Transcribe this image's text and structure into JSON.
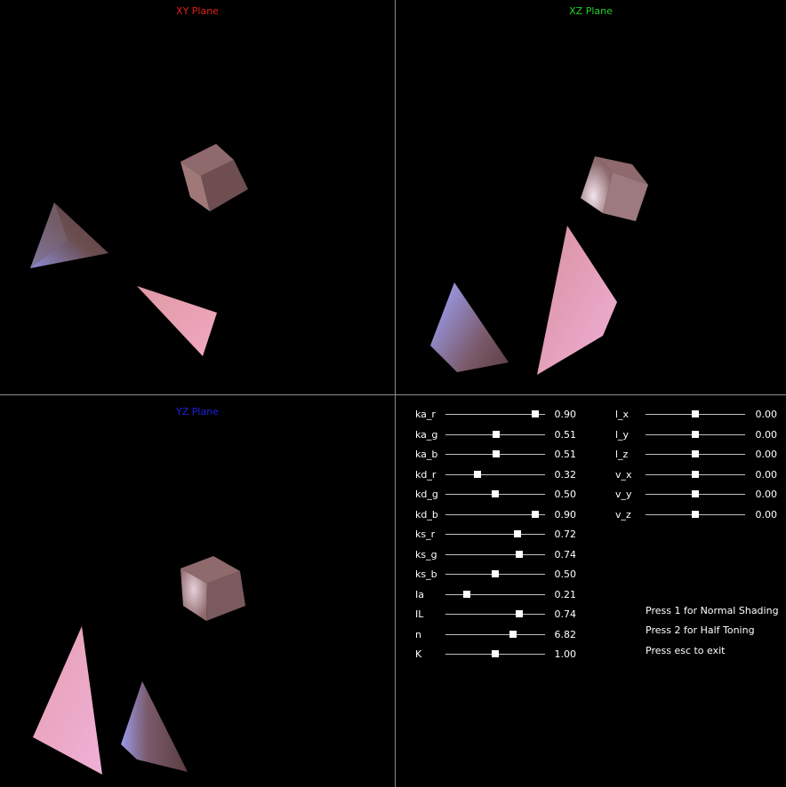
{
  "planes": {
    "xy": {
      "title": "XY Plane",
      "color": "#e0201c"
    },
    "xz": {
      "title": "XZ Plane",
      "color": "#22d12a"
    },
    "yz": {
      "title": "YZ Plane",
      "color": "#2020e0"
    }
  },
  "material_sliders": [
    {
      "label": "ka_r",
      "value": "0.90",
      "level": 0.9
    },
    {
      "label": "ka_g",
      "value": "0.51",
      "level": 0.51
    },
    {
      "label": "ka_b",
      "value": "0.51",
      "level": 0.51
    },
    {
      "label": "kd_r",
      "value": "0.32",
      "level": 0.32
    },
    {
      "label": "kd_g",
      "value": "0.50",
      "level": 0.5
    },
    {
      "label": "kd_b",
      "value": "0.90",
      "level": 0.9
    },
    {
      "label": "ks_r",
      "value": "0.72",
      "level": 0.72
    },
    {
      "label": "ks_g",
      "value": "0.74",
      "level": 0.74
    },
    {
      "label": "ks_b",
      "value": "0.50",
      "level": 0.5
    },
    {
      "label": "Ia",
      "value": "0.21",
      "level": 0.21
    },
    {
      "label": "IL",
      "value": "0.74",
      "level": 0.74
    },
    {
      "label": "n",
      "value": "6.82",
      "level": 0.682
    },
    {
      "label": "K",
      "value": "1.00",
      "level": 0.5
    }
  ],
  "view_sliders": [
    {
      "label": "l_x",
      "value": "0.00",
      "level": 0.5
    },
    {
      "label": "l_y",
      "value": "0.00",
      "level": 0.5
    },
    {
      "label": "l_z",
      "value": "0.00",
      "level": 0.5
    },
    {
      "label": "v_x",
      "value": "0.00",
      "level": 0.5
    },
    {
      "label": "v_y",
      "value": "0.00",
      "level": 0.5
    },
    {
      "label": "v_z",
      "value": "0.00",
      "level": 0.5
    }
  ],
  "instructions": [
    "Press 1 for Normal Shading",
    "Press 2 for Half Toning",
    "Press esc to exit"
  ]
}
